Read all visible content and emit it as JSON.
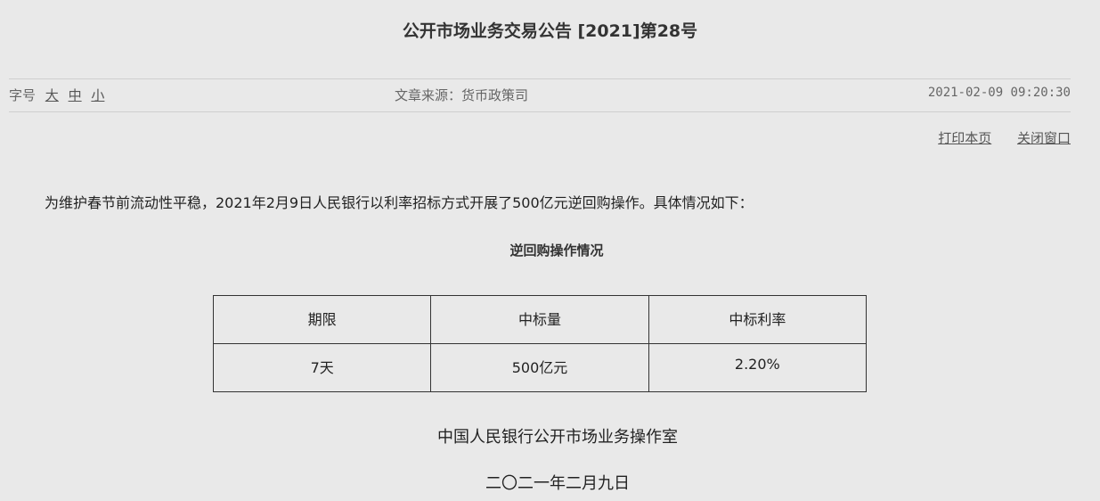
{
  "title": "公开市场业务交易公告 [2021]第28号",
  "meta": {
    "font_size_label": "字号",
    "font_sizes": [
      "大",
      "中",
      "小"
    ],
    "source": "文章来源：货币政策司",
    "timestamp": "2021-02-09 09:20:30"
  },
  "tools": {
    "print": "打印本页",
    "close": "关闭窗口"
  },
  "paragraph": "为维护春节前流动性平稳，2021年2月9日人民银行以利率招标方式开展了500亿元逆回购操作。具体情况如下：",
  "table": {
    "caption": "逆回购操作情况",
    "headers": [
      "期限",
      "中标量",
      "中标利率"
    ],
    "rows": [
      [
        "7天",
        "500亿元",
        "2.20%"
      ]
    ]
  },
  "signature": "中国人民银行公开市场业务操作室",
  "date": "二〇二一年二月九日"
}
